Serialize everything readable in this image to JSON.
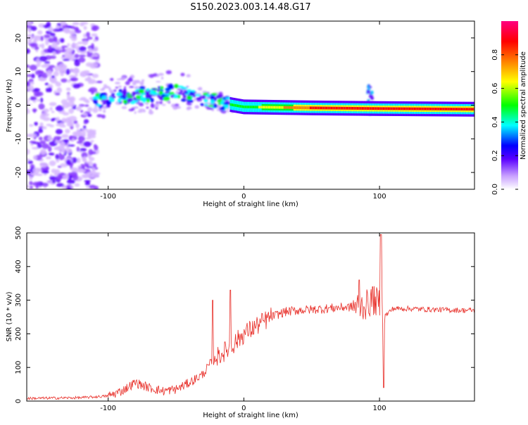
{
  "title": "S150.2023.003.14.48.G17",
  "chart_data": [
    {
      "type": "heatmap",
      "xlabel": "Height of straight line (km)",
      "ylabel": "Frequency (Hz)",
      "xlim": [
        -160,
        170
      ],
      "ylim": [
        -25,
        25
      ],
      "x_ticks": [
        -100,
        0,
        100
      ],
      "y_ticks": [
        -20,
        -10,
        0,
        10,
        20
      ],
      "colorbar": {
        "label": "Normalized spectral amplitude",
        "range": [
          0,
          1
        ],
        "ticks": [
          "0.0",
          "0.2",
          "0.4",
          "0.6",
          "0.8"
        ],
        "colors": [
          "#ffffff",
          "#c8a0ff",
          "#5a00ff",
          "#0000ff",
          "#00ffff",
          "#00ff00",
          "#ffff00",
          "#ff8000",
          "#ff0000",
          "#ff0080"
        ]
      },
      "ridge": [
        {
          "x": -110,
          "freq": 1.2
        },
        {
          "x": -80,
          "freq": 3.0
        },
        {
          "x": -50,
          "freq": 4.0
        },
        {
          "x": -30,
          "freq": 2.0
        },
        {
          "x": -10,
          "freq": 0.2
        },
        {
          "x": 0,
          "freq": -0.5
        },
        {
          "x": 50,
          "freq": -0.8
        },
        {
          "x": 100,
          "freq": -1.0
        },
        {
          "x": 170,
          "freq": -1.2
        }
      ]
    },
    {
      "type": "line",
      "xlabel": "Height of straight line (km)",
      "ylabel": "SNR (10 * v/v)",
      "xlim": [
        -160,
        170
      ],
      "ylim": [
        0,
        500
      ],
      "x_ticks": [
        -100,
        0,
        100
      ],
      "y_ticks": [
        0,
        100,
        200,
        300,
        400,
        500
      ],
      "color": "#e8302a",
      "series": [
        {
          "x": [
            -160,
            -140,
            -120,
            -100,
            -90,
            -80,
            -70,
            -60,
            -50,
            -40,
            -30,
            -25,
            -20,
            -10,
            0,
            10,
            20,
            30,
            40,
            50,
            60,
            70,
            80,
            90,
            95,
            100,
            103,
            110,
            120,
            140,
            160,
            170
          ],
          "values": [
            8,
            9,
            10,
            15,
            30,
            55,
            40,
            30,
            35,
            55,
            80,
            110,
            130,
            160,
            200,
            225,
            250,
            265,
            270,
            272,
            275,
            278,
            280,
            285,
            300,
            290,
            250,
            275,
            275,
            272,
            270,
            270
          ]
        }
      ],
      "spikes": [
        {
          "x": -23,
          "peak": 300
        },
        {
          "x": -10,
          "peak": 330
        },
        {
          "x": 85,
          "peak": 360
        },
        {
          "x": 95,
          "peak": 340
        },
        {
          "x": 101,
          "peak": 495
        },
        {
          "x": 103,
          "peak": 40
        }
      ]
    }
  ]
}
